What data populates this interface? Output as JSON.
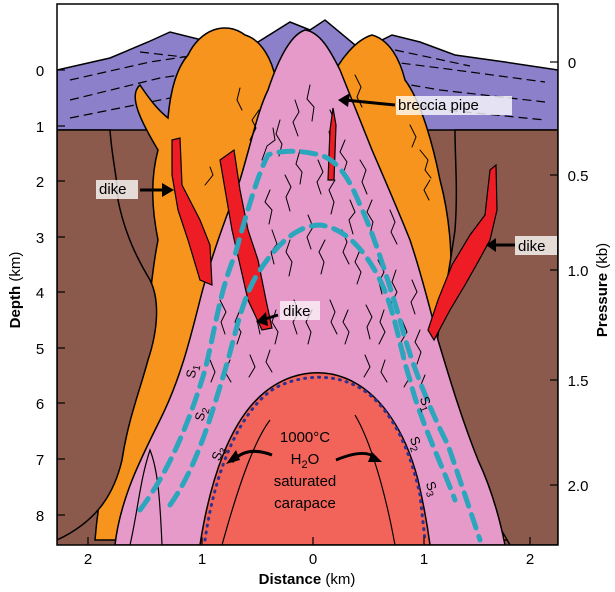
{
  "axes": {
    "left_title_bold": "Depth",
    "left_title_unit": " (km)",
    "right_title_bold": "Pressure",
    "right_title_unit": " (kb)",
    "bottom_title_bold": "Distance",
    "bottom_title_unit": " (km)",
    "depth_ticks": [
      "0",
      "1",
      "2",
      "3",
      "4",
      "5",
      "6",
      "7",
      "8"
    ],
    "pressure_ticks": [
      "0",
      "0.5",
      "1.0",
      "1.5",
      "2.0"
    ],
    "distance_ticks": [
      "2",
      "1",
      "0",
      "1",
      "2"
    ]
  },
  "labels": {
    "breccia_pipe": "breccia pipe",
    "dike_left": "dike",
    "dike_center": "dike",
    "dike_right": "dike",
    "temperature": "1000°C",
    "h2o_main": "H",
    "h2o_sub": "2",
    "h2o_tail": "O",
    "saturated": "saturated",
    "carapace": "carapace",
    "s_main": "S",
    "s1": "1",
    "s2": "2",
    "s3": "3"
  },
  "colors": {
    "volcanic_cover": "#8b80c9",
    "country_rock": "#8b5a4c",
    "alteration_orange": "#f7941d",
    "intrusion_pink": "#e59ac9",
    "carapace_red": "#f2645a",
    "dike_red": "#ee1c25",
    "shell_cyan": "#2ba6bd",
    "dot_blue": "#2e3192"
  }
}
